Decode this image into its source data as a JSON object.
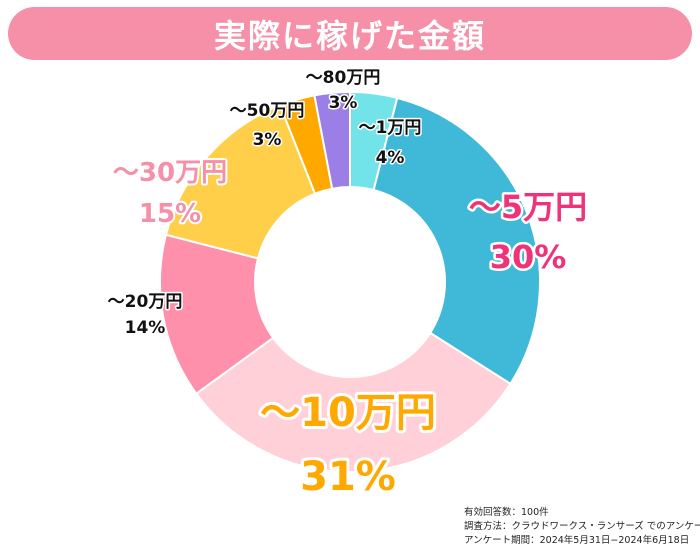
{
  "chart_data": {
    "type": "pie",
    "variant": "donut",
    "title": "実際に稼げた金額",
    "start": "top",
    "direction": "clockwise",
    "categories": [
      "〜1万円",
      "〜5万円",
      "〜10万円",
      "〜20万円",
      "〜30万円",
      "〜50万円",
      "〜80万円"
    ],
    "values": [
      4,
      30,
      31,
      14,
      15,
      3,
      3
    ],
    "value_labels": [
      "4%",
      "30%",
      "31%",
      "14%",
      "15%",
      "3%",
      "3%"
    ],
    "colors": [
      "#72e3e8",
      "#40b8d8",
      "#ffd0d8",
      "#ff90ac",
      "#ffcf4a",
      "#ffa800",
      "#9b7ee6"
    ],
    "label_colors": [
      "#111111",
      "#f0327a",
      "#ffa800",
      "#111111",
      "#f590a8",
      "#111111",
      "#111111"
    ]
  },
  "notes": [
    "有効回答数：100件",
    "調査方法：クラウドワークス・ランサーズ でのアンケート",
    "アンケート期間：2024年5月31日−2024年6月18日"
  ]
}
